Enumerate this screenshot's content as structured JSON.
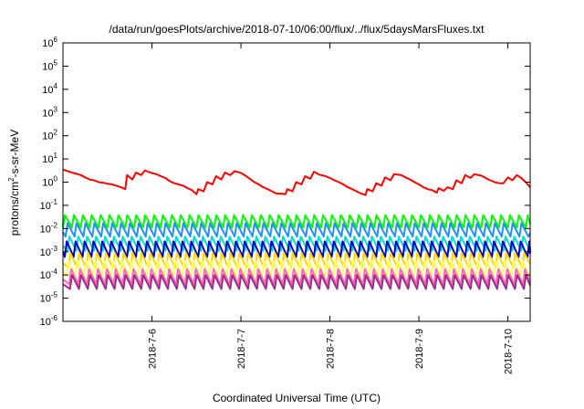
{
  "chart_data": {
    "type": "line",
    "title": "/data/run/goesPlots/archive/2018-07-10/06:00/flux/../flux/5daysMarsFluxes.txt",
    "xlabel": "Coordinated Universal Time (UTC)",
    "ylabel": {
      "base": "protons/cm",
      "sup": "2",
      "rest": "-s-sr-MeV"
    },
    "yscale": "log",
    "ylim": [
      1e-06,
      1000000.0
    ],
    "xlim": [
      0.0,
      5.25
    ],
    "x_ticks": [
      {
        "value": 1,
        "label": "2018-7-6"
      },
      {
        "value": 2,
        "label": "2018-7-7"
      },
      {
        "value": 3,
        "label": "2018-7-8"
      },
      {
        "value": 4,
        "label": "2018-7-9"
      },
      {
        "value": 5,
        "label": "2018-7-10"
      }
    ],
    "y_ticks": [
      {
        "exp": -6,
        "label": "10",
        "sup": "-6"
      },
      {
        "exp": -5,
        "label": "10",
        "sup": "-5"
      },
      {
        "exp": -4,
        "label": "10",
        "sup": "-4"
      },
      {
        "exp": -3,
        "label": "10",
        "sup": "-3"
      },
      {
        "exp": -2,
        "label": "10",
        "sup": "-2"
      },
      {
        "exp": -1,
        "label": "10",
        "sup": "-1"
      },
      {
        "exp": 0,
        "label": "10",
        "sup": "0"
      },
      {
        "exp": 1,
        "label": "10",
        "sup": "1"
      },
      {
        "exp": 2,
        "label": "10",
        "sup": "2"
      },
      {
        "exp": 3,
        "label": "10",
        "sup": "3"
      },
      {
        "exp": 4,
        "label": "10",
        "sup": "4"
      },
      {
        "exp": 5,
        "label": "10",
        "sup": "5"
      },
      {
        "exp": 6,
        "label": "10",
        "sup": "6"
      }
    ],
    "grid": false,
    "legend": "none",
    "series": [
      {
        "color": "#ff0000",
        "points": [
          [
            0.0,
            3.5
          ],
          [
            0.05,
            3.0
          ],
          [
            0.1,
            2.6
          ],
          [
            0.15,
            2.3
          ],
          [
            0.2,
            2.0
          ],
          [
            0.25,
            1.6
          ],
          [
            0.3,
            1.3
          ],
          [
            0.35,
            1.2
          ],
          [
            0.4,
            1.0
          ],
          [
            0.45,
            0.95
          ],
          [
            0.5,
            0.85
          ],
          [
            0.55,
            0.8
          ],
          [
            0.6,
            0.7
          ],
          [
            0.65,
            0.6
          ],
          [
            0.7,
            0.5
          ],
          [
            0.72,
            2.0
          ],
          [
            0.78,
            1.3
          ],
          [
            0.82,
            2.6
          ],
          [
            0.88,
            2.0
          ],
          [
            0.92,
            3.2
          ],
          [
            0.98,
            2.6
          ],
          [
            1.05,
            2.2
          ],
          [
            1.1,
            1.8
          ],
          [
            1.15,
            1.5
          ],
          [
            1.2,
            1.1
          ],
          [
            1.25,
            0.9
          ],
          [
            1.3,
            0.8
          ],
          [
            1.35,
            0.7
          ],
          [
            1.4,
            0.55
          ],
          [
            1.45,
            0.45
          ],
          [
            1.5,
            0.3
          ],
          [
            1.52,
            0.5
          ],
          [
            1.58,
            0.4
          ],
          [
            1.62,
            1.0
          ],
          [
            1.68,
            0.8
          ],
          [
            1.72,
            1.8
          ],
          [
            1.78,
            1.3
          ],
          [
            1.82,
            2.6
          ],
          [
            1.88,
            2.0
          ],
          [
            1.93,
            3.0
          ],
          [
            2.0,
            2.5
          ],
          [
            2.05,
            1.9
          ],
          [
            2.1,
            1.4
          ],
          [
            2.15,
            1.0
          ],
          [
            2.2,
            0.8
          ],
          [
            2.25,
            0.6
          ],
          [
            2.3,
            0.5
          ],
          [
            2.35,
            0.4
          ],
          [
            2.4,
            0.32
          ],
          [
            2.45,
            0.32
          ],
          [
            2.5,
            0.3
          ],
          [
            2.52,
            0.5
          ],
          [
            2.58,
            0.4
          ],
          [
            2.62,
            1.0
          ],
          [
            2.68,
            0.8
          ],
          [
            2.72,
            1.8
          ],
          [
            2.78,
            1.4
          ],
          [
            2.82,
            2.8
          ],
          [
            2.88,
            2.1
          ],
          [
            2.95,
            1.8
          ],
          [
            3.0,
            1.5
          ],
          [
            3.05,
            1.2
          ],
          [
            3.1,
            1.0
          ],
          [
            3.15,
            0.8
          ],
          [
            3.2,
            0.6
          ],
          [
            3.25,
            0.5
          ],
          [
            3.3,
            0.4
          ],
          [
            3.35,
            0.32
          ],
          [
            3.4,
            0.28
          ],
          [
            3.42,
            0.5
          ],
          [
            3.48,
            0.4
          ],
          [
            3.52,
            0.9
          ],
          [
            3.58,
            0.7
          ],
          [
            3.62,
            1.6
          ],
          [
            3.68,
            1.2
          ],
          [
            3.72,
            2.2
          ],
          [
            3.8,
            2.0
          ],
          [
            3.85,
            1.6
          ],
          [
            3.9,
            1.3
          ],
          [
            3.95,
            1.0
          ],
          [
            4.0,
            0.8
          ],
          [
            4.05,
            0.6
          ],
          [
            4.1,
            0.5
          ],
          [
            4.15,
            0.45
          ],
          [
            4.2,
            0.35
          ],
          [
            4.22,
            0.55
          ],
          [
            4.28,
            0.42
          ],
          [
            4.32,
            0.6
          ],
          [
            4.38,
            0.5
          ],
          [
            4.42,
            1.2
          ],
          [
            4.48,
            0.9
          ],
          [
            4.52,
            2.0
          ],
          [
            4.58,
            1.5
          ],
          [
            4.62,
            2.2
          ],
          [
            4.7,
            1.9
          ],
          [
            4.75,
            1.5
          ],
          [
            4.8,
            1.2
          ],
          [
            4.85,
            1.0
          ],
          [
            4.9,
            0.9
          ],
          [
            4.95,
            0.9
          ],
          [
            5.0,
            1.6
          ],
          [
            5.05,
            1.2
          ],
          [
            5.1,
            2.0
          ],
          [
            5.15,
            1.5
          ],
          [
            5.2,
            1.0
          ],
          [
            5.25,
            0.6
          ]
        ]
      },
      {
        "color": "#00ff00",
        "sawtooth": {
          "start": 0.0,
          "period": 0.1,
          "low": 0.011,
          "high": 0.038
        }
      },
      {
        "color": "#1e90ff",
        "sawtooth": {
          "start": 0.03,
          "period": 0.1,
          "low": 0.0045,
          "high": 0.017
        }
      },
      {
        "color": "#00e0c8",
        "sawtooth": {
          "start": 0.05,
          "period": 0.1,
          "low": 0.0011,
          "high": 0.0045
        }
      },
      {
        "color": "#0000cd",
        "sawtooth": {
          "start": 0.02,
          "period": 0.1,
          "low": 0.0006,
          "high": 0.0028
        }
      },
      {
        "color": "#ffd700",
        "sawtooth": {
          "start": 0.06,
          "period": 0.1,
          "low": 0.0002,
          "high": 0.0009
        }
      },
      {
        "color": "#ffff66",
        "sawtooth": {
          "start": 0.04,
          "period": 0.1,
          "low": 9e-05,
          "high": 0.0004
        }
      },
      {
        "color": "#ff69b4",
        "sawtooth": {
          "start": 0.07,
          "period": 0.1,
          "low": 4e-05,
          "high": 0.00018
        }
      },
      {
        "color": "#9b2f8a",
        "sawtooth": {
          "start": 0.08,
          "period": 0.1,
          "low": 2.5e-05,
          "high": 0.0001
        }
      }
    ]
  }
}
